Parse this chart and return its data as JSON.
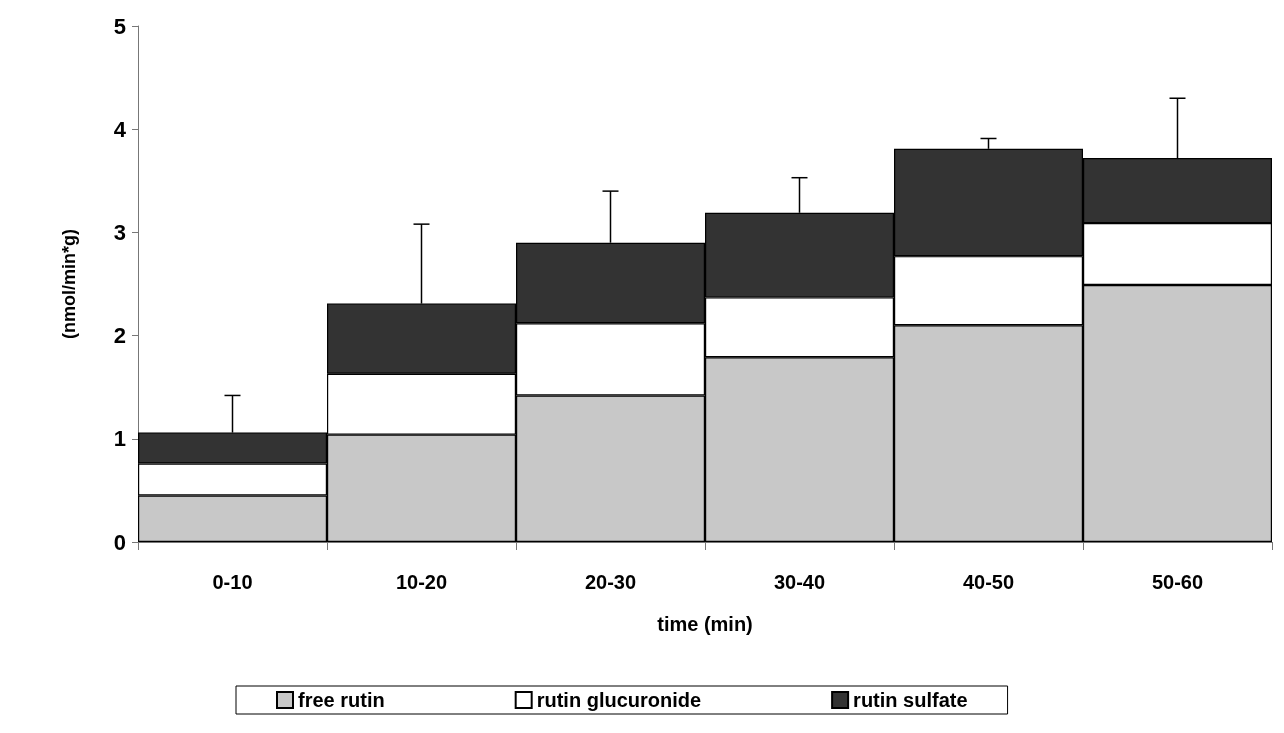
{
  "chart_data": {
    "type": "bar",
    "stacked": true,
    "xlabel": "time (min)",
    "ylabel": "(nmol/min*g)",
    "categories": [
      "0-10",
      "10-20",
      "20-30",
      "30-40",
      "40-50",
      "50-60"
    ],
    "series": [
      {
        "name": "free rutin",
        "color": "#c8c8c8",
        "values": [
          0.45,
          1.04,
          1.42,
          1.79,
          2.1,
          2.49
        ]
      },
      {
        "name": "rutin glucuronide",
        "color": "#ffffff",
        "values": [
          0.31,
          0.59,
          0.7,
          0.58,
          0.67,
          0.6
        ]
      },
      {
        "name": "rutin sulfate",
        "color": "#333333",
        "values": [
          0.3,
          0.68,
          0.78,
          0.82,
          1.04,
          0.63
        ],
        "errors": [
          [
            1.06,
            1.42
          ],
          [
            2.31,
            3.08
          ],
          [
            2.9,
            3.4
          ],
          [
            3.19,
            3.53
          ],
          [
            3.81,
            3.91
          ],
          [
            3.72,
            4.3
          ]
        ]
      }
    ],
    "ylim": [
      0,
      5
    ],
    "yticks": [
      0,
      1,
      2,
      3,
      4,
      5
    ],
    "grid": false,
    "legend": "bottom"
  }
}
